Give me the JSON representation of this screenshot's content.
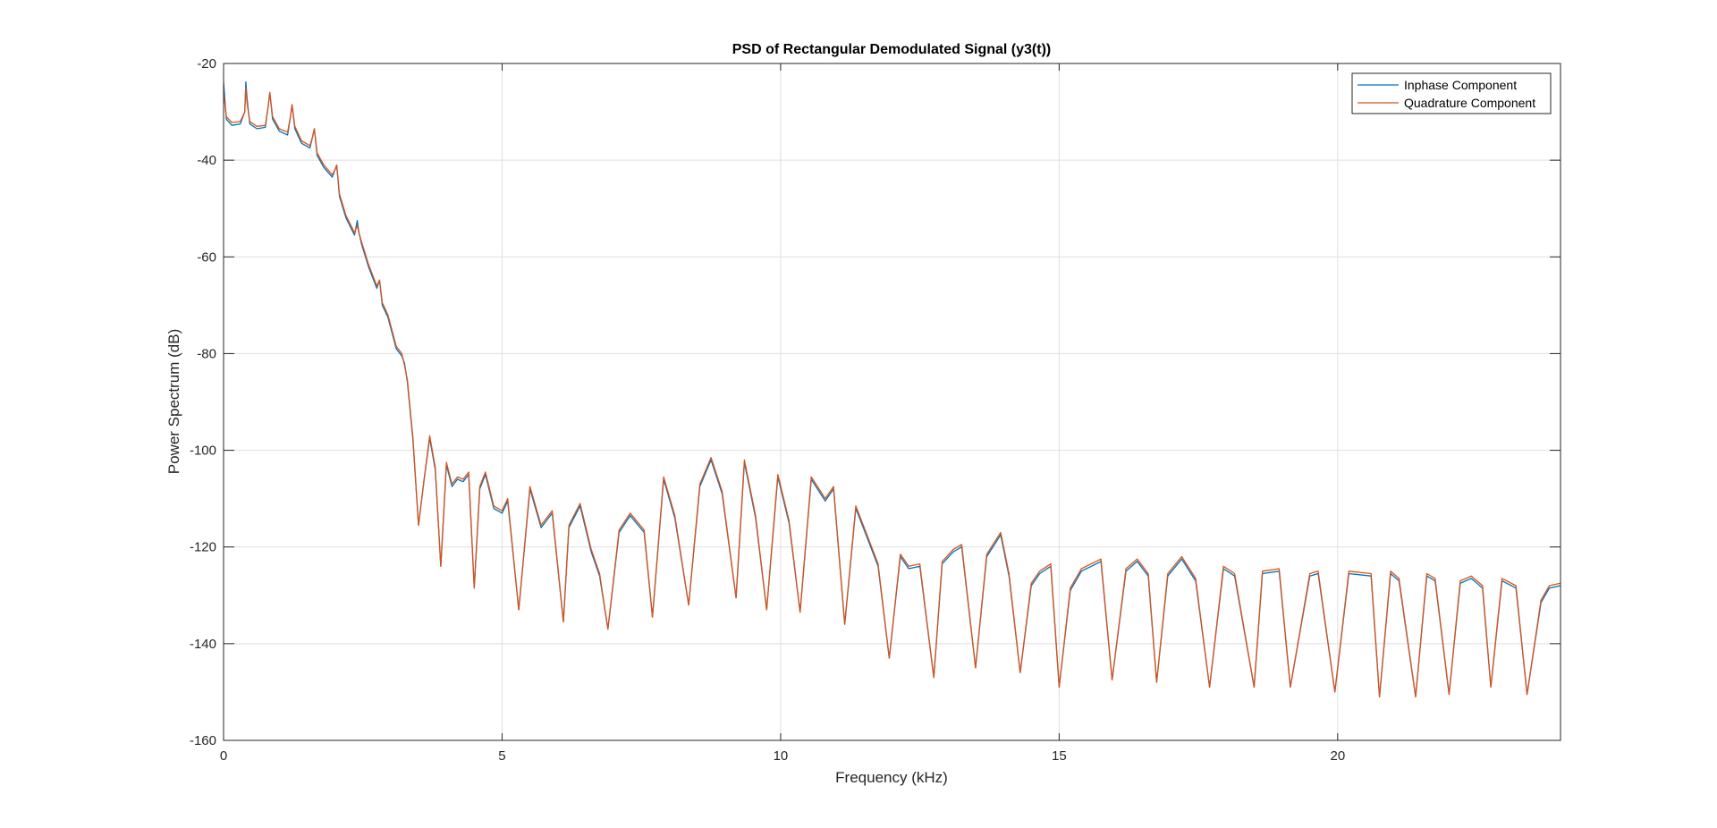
{
  "chart_data": {
    "type": "line",
    "title": "PSD of Rectangular Demodulated Signal (y3(t))",
    "xlabel": "Frequency (kHz)",
    "ylabel": "Power Spectrum (dB)",
    "xlim": [
      0,
      24
    ],
    "ylim": [
      -160,
      -20
    ],
    "xticks": [
      0,
      5,
      10,
      15,
      20
    ],
    "yticks": [
      -20,
      -40,
      -60,
      -80,
      -100,
      -120,
      -140,
      -160
    ],
    "grid": true,
    "legend_position": "top-right",
    "series": [
      {
        "name": "Inphase Component",
        "color": "#0072BD",
        "x": [
          0,
          0.05,
          0.15,
          0.3,
          0.38,
          0.4,
          0.42,
          0.47,
          0.6,
          0.75,
          0.8,
          0.83,
          0.88,
          1.0,
          1.15,
          1.2,
          1.23,
          1.28,
          1.4,
          1.55,
          1.6,
          1.63,
          1.68,
          1.8,
          1.95,
          2.0,
          2.03,
          2.08,
          2.2,
          2.35,
          2.4,
          2.43,
          2.48,
          2.6,
          2.75,
          2.8,
          2.85,
          2.95,
          3.1,
          3.2,
          3.25,
          3.3,
          3.4,
          3.5,
          3.6,
          3.7,
          3.8,
          3.9,
          4.0,
          4.1,
          4.2,
          4.3,
          4.4,
          4.5,
          4.6,
          4.7,
          4.85,
          5.0,
          5.1,
          5.3,
          5.5,
          5.7,
          5.9,
          6.1,
          6.2,
          6.4,
          6.6,
          6.75,
          6.9,
          7.1,
          7.3,
          7.55,
          7.7,
          7.9,
          8.1,
          8.35,
          8.55,
          8.75,
          8.95,
          9.2,
          9.35,
          9.55,
          9.75,
          9.95,
          10.15,
          10.35,
          10.55,
          10.8,
          10.95,
          11.15,
          11.35,
          11.55,
          11.75,
          11.95,
          12.15,
          12.3,
          12.5,
          12.75,
          12.9,
          13.1,
          13.25,
          13.5,
          13.7,
          13.95,
          14.1,
          14.3,
          14.5,
          14.65,
          14.85,
          15.0,
          15.2,
          15.4,
          15.75,
          15.95,
          16.2,
          16.4,
          16.6,
          16.75,
          16.95,
          17.2,
          17.45,
          17.7,
          17.95,
          18.15,
          18.5,
          18.65,
          18.95,
          19.15,
          19.5,
          19.65,
          19.95,
          20.2,
          20.6,
          20.75,
          20.95,
          21.1,
          21.4,
          21.6,
          21.75,
          22.0,
          22.2,
          22.4,
          22.6,
          22.75,
          22.95,
          23.2,
          23.4,
          23.65,
          23.8,
          24.0
        ],
        "y": [
          -24.0,
          -31.5,
          -32.8,
          -32.5,
          -30.0,
          -23.8,
          -27.0,
          -32.5,
          -33.5,
          -33.2,
          -29.0,
          -26.0,
          -31.5,
          -34.0,
          -34.8,
          -31.0,
          -28.5,
          -33.5,
          -36.5,
          -37.5,
          -35.0,
          -33.5,
          -39.0,
          -41.5,
          -43.5,
          -42.0,
          -41.0,
          -47.5,
          -52.0,
          -55.5,
          -52.5,
          -55.0,
          -57.5,
          -62.0,
          -66.5,
          -64.8,
          -70.0,
          -72.5,
          -79.0,
          -80.5,
          -82.0,
          -86.0,
          -98.0,
          -115.5,
          -106.0,
          -97.5,
          -104.0,
          -124.0,
          -103.0,
          -107.5,
          -106.0,
          -106.5,
          -105.0,
          -128.5,
          -108.0,
          -105.0,
          -112.0,
          -113.0,
          -110.5,
          -133.0,
          -108.0,
          -116.0,
          -113.0,
          -135.5,
          -116.0,
          -111.5,
          -121.0,
          -126.0,
          -137.0,
          -117.0,
          -113.5,
          -117.0,
          -134.5,
          -106.0,
          -114.0,
          -132.0,
          -107.5,
          -102.0,
          -109.0,
          -130.5,
          -102.5,
          -114.0,
          -133.0,
          -105.5,
          -115.0,
          -133.5,
          -106.0,
          -110.5,
          -108.0,
          -136.0,
          -112.0,
          -118.0,
          -124.0,
          -143.0,
          -122.0,
          -124.5,
          -124.0,
          -147.0,
          -123.5,
          -121.0,
          -120.0,
          -145.0,
          -122.0,
          -117.5,
          -126.0,
          -146.0,
          -128.0,
          -125.5,
          -124.0,
          -149.0,
          -129.0,
          -125.0,
          -123.0,
          -147.5,
          -125.0,
          -123.0,
          -126.0,
          -148.0,
          -126.0,
          -122.5,
          -127.0,
          -149.0,
          -124.5,
          -126.0,
          -149.0,
          -125.5,
          -125.0,
          -149.0,
          -126.0,
          -125.5,
          -150.0,
          -125.5,
          -126.0,
          -151.0,
          -125.5,
          -127.0,
          -151.0,
          -126.0,
          -127.0,
          -150.5,
          -127.5,
          -126.5,
          -128.5,
          -149.0,
          -127.0,
          -128.5,
          -150.5,
          -131.5,
          -128.5,
          -128.0
        ]
      },
      {
        "name": "Quadrature Component",
        "color": "#D95319",
        "x": [
          0,
          0.05,
          0.15,
          0.3,
          0.38,
          0.4,
          0.42,
          0.47,
          0.6,
          0.75,
          0.8,
          0.83,
          0.88,
          1.0,
          1.15,
          1.2,
          1.23,
          1.28,
          1.4,
          1.55,
          1.6,
          1.63,
          1.68,
          1.8,
          1.95,
          2.0,
          2.03,
          2.08,
          2.2,
          2.35,
          2.4,
          2.43,
          2.48,
          2.6,
          2.75,
          2.8,
          2.85,
          2.95,
          3.1,
          3.2,
          3.25,
          3.3,
          3.4,
          3.5,
          3.6,
          3.7,
          3.8,
          3.9,
          4.0,
          4.1,
          4.2,
          4.3,
          4.4,
          4.5,
          4.6,
          4.7,
          4.85,
          5.0,
          5.1,
          5.3,
          5.5,
          5.7,
          5.9,
          6.1,
          6.2,
          6.4,
          6.6,
          6.75,
          6.9,
          7.1,
          7.3,
          7.55,
          7.7,
          7.9,
          8.1,
          8.35,
          8.55,
          8.75,
          8.95,
          9.2,
          9.35,
          9.55,
          9.75,
          9.95,
          10.15,
          10.35,
          10.55,
          10.8,
          10.95,
          11.15,
          11.35,
          11.55,
          11.75,
          11.95,
          12.15,
          12.3,
          12.5,
          12.75,
          12.9,
          13.1,
          13.25,
          13.5,
          13.7,
          13.95,
          14.1,
          14.3,
          14.5,
          14.65,
          14.85,
          15.0,
          15.2,
          15.4,
          15.75,
          15.95,
          16.2,
          16.4,
          16.6,
          16.75,
          16.95,
          17.2,
          17.45,
          17.7,
          17.95,
          18.15,
          18.5,
          18.65,
          18.95,
          19.15,
          19.5,
          19.65,
          19.95,
          20.2,
          20.6,
          20.75,
          20.95,
          21.1,
          21.4,
          21.6,
          21.75,
          22.0,
          22.2,
          22.4,
          22.6,
          22.75,
          22.95,
          23.2,
          23.4,
          23.65,
          23.8,
          24.0
        ],
        "y": [
          -26.0,
          -31.0,
          -32.2,
          -32.0,
          -30.0,
          -25.0,
          -28.0,
          -32.0,
          -33.0,
          -32.8,
          -29.0,
          -26.0,
          -31.0,
          -33.5,
          -34.2,
          -31.0,
          -28.5,
          -33.0,
          -36.0,
          -37.0,
          -35.0,
          -33.5,
          -38.5,
          -41.0,
          -43.0,
          -42.0,
          -41.0,
          -47.0,
          -51.5,
          -55.0,
          -53.5,
          -55.0,
          -57.0,
          -61.5,
          -66.0,
          -64.8,
          -69.5,
          -72.0,
          -78.5,
          -80.0,
          -82.5,
          -85.5,
          -97.5,
          -115.5,
          -106.0,
          -97.0,
          -103.5,
          -124.0,
          -102.5,
          -107.0,
          -105.5,
          -106.0,
          -104.5,
          -128.5,
          -107.5,
          -104.5,
          -111.5,
          -112.5,
          -110.0,
          -133.0,
          -107.5,
          -115.5,
          -112.5,
          -135.5,
          -115.5,
          -111.0,
          -120.5,
          -125.5,
          -137.0,
          -116.5,
          -113.0,
          -116.5,
          -134.5,
          -105.5,
          -113.5,
          -132.0,
          -107.0,
          -101.5,
          -108.5,
          -130.5,
          -102.0,
          -113.5,
          -133.0,
          -105.0,
          -114.5,
          -133.5,
          -105.5,
          -110.0,
          -107.5,
          -136.0,
          -111.5,
          -117.5,
          -123.5,
          -143.0,
          -121.5,
          -124.0,
          -123.5,
          -147.0,
          -123.0,
          -120.5,
          -119.5,
          -145.0,
          -121.5,
          -117.0,
          -125.5,
          -146.0,
          -127.5,
          -125.0,
          -123.5,
          -149.0,
          -128.5,
          -124.5,
          -122.5,
          -147.5,
          -124.5,
          -122.5,
          -125.5,
          -148.0,
          -125.5,
          -122.0,
          -126.5,
          -149.0,
          -124.0,
          -125.5,
          -149.0,
          -125.0,
          -124.5,
          -149.0,
          -125.5,
          -125.0,
          -150.0,
          -125.0,
          -125.5,
          -151.0,
          -125.0,
          -126.5,
          -151.0,
          -125.5,
          -126.5,
          -150.5,
          -127.0,
          -126.0,
          -128.0,
          -149.0,
          -126.5,
          -128.0,
          -150.5,
          -131.0,
          -128.0,
          -127.5
        ]
      }
    ]
  }
}
